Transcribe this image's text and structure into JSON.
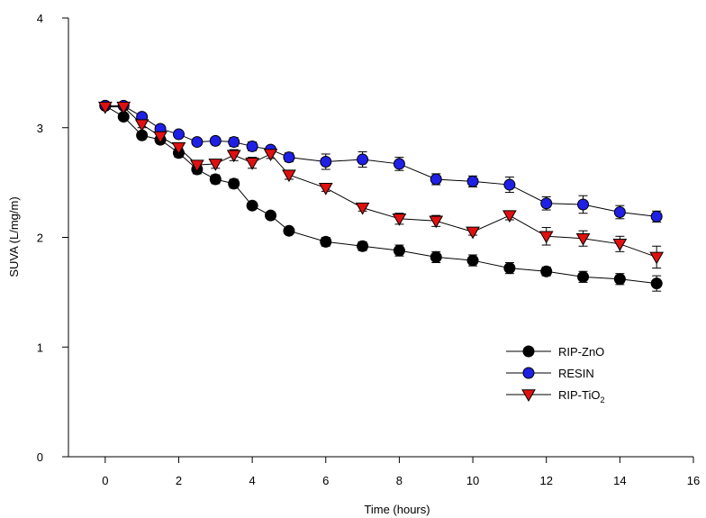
{
  "chart_data": {
    "type": "line",
    "xlabel": "Time (hours)",
    "ylabel": "SUVA (L/mg/m)",
    "xlim": [
      -1,
      16
    ],
    "ylim": [
      0,
      4
    ],
    "xticks": [
      0,
      2,
      4,
      6,
      8,
      10,
      12,
      14,
      16
    ],
    "yticks": [
      0,
      1,
      2,
      3,
      4
    ],
    "grid": false,
    "legend_position": "lower-right",
    "series": [
      {
        "name": "RIP-ZnO",
        "marker": "circle",
        "color": "#000000",
        "x": [
          0,
          0.5,
          1,
          1.5,
          2,
          2.5,
          3,
          3.5,
          4,
          4.5,
          5,
          6,
          7,
          8,
          9,
          10,
          11,
          12,
          13,
          14,
          15
        ],
        "y": [
          3.2,
          3.1,
          2.93,
          2.89,
          2.77,
          2.62,
          2.53,
          2.49,
          2.29,
          2.2,
          2.06,
          1.96,
          1.92,
          1.88,
          1.82,
          1.79,
          1.72,
          1.69,
          1.64,
          1.62,
          1.58
        ],
        "err": [
          0.02,
          0.03,
          0.03,
          0.03,
          0.04,
          0.04,
          0.04,
          0.04,
          0.03,
          0.03,
          0.03,
          0.04,
          0.04,
          0.05,
          0.05,
          0.05,
          0.05,
          0.04,
          0.05,
          0.05,
          0.07
        ]
      },
      {
        "name": "RESIN",
        "marker": "circle",
        "color": "#1f1fe6",
        "x": [
          0,
          0.5,
          1,
          1.5,
          2,
          2.5,
          3,
          3.5,
          4,
          4.5,
          5,
          6,
          7,
          8,
          9,
          10,
          11,
          12,
          13,
          14,
          15
        ],
        "y": [
          3.2,
          3.2,
          3.1,
          2.99,
          2.94,
          2.87,
          2.88,
          2.87,
          2.83,
          2.8,
          2.73,
          2.69,
          2.71,
          2.67,
          2.53,
          2.51,
          2.48,
          2.31,
          2.3,
          2.23,
          2.19
        ],
        "err": [
          0.02,
          0.02,
          0.03,
          0.03,
          0.03,
          0.03,
          0.03,
          0.04,
          0.04,
          0.03,
          0.04,
          0.07,
          0.07,
          0.06,
          0.05,
          0.05,
          0.07,
          0.06,
          0.08,
          0.06,
          0.05
        ]
      },
      {
        "name": "RIP-TiO2",
        "marker": "triangle-down",
        "color": "#e01010",
        "x": [
          0,
          0.5,
          1,
          1.5,
          2,
          2.5,
          3,
          3.5,
          4,
          4.5,
          5,
          6,
          7,
          8,
          9,
          10,
          11,
          12,
          13,
          14,
          15
        ],
        "y": [
          3.19,
          3.19,
          3.03,
          2.92,
          2.82,
          2.66,
          2.67,
          2.75,
          2.68,
          2.76,
          2.57,
          2.45,
          2.27,
          2.17,
          2.15,
          2.05,
          2.2,
          2.01,
          1.99,
          1.94,
          1.82
        ],
        "err": [
          0.02,
          0.02,
          0.03,
          0.03,
          0.04,
          0.04,
          0.04,
          0.05,
          0.05,
          0.04,
          0.04,
          0.03,
          0.03,
          0.05,
          0.05,
          0.03,
          0.04,
          0.08,
          0.07,
          0.07,
          0.1
        ]
      }
    ],
    "legend": [
      {
        "label": "RIP-ZnO",
        "sub": ""
      },
      {
        "label": "RESIN",
        "sub": ""
      },
      {
        "label": "RIP-TiO",
        "sub": "2"
      }
    ]
  }
}
